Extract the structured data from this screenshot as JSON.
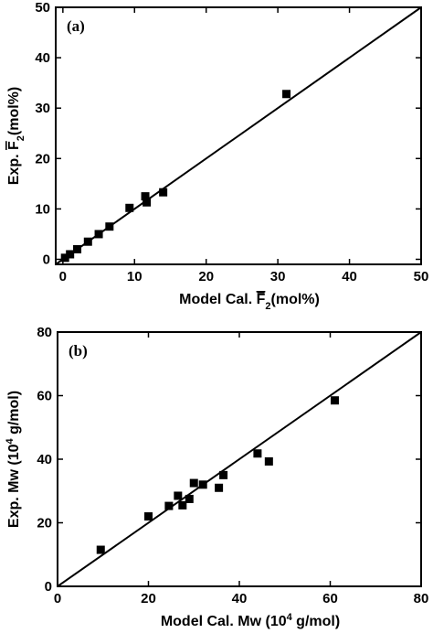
{
  "chart_data": [
    {
      "type": "scatter",
      "panel_label": "(a)",
      "xlabel": {
        "pre": "Model Cal. ",
        "sym": "F",
        "sub": "2",
        "post": "(mol%)"
      },
      "ylabel": {
        "pre": "Exp. ",
        "sym": "F",
        "sub": "2",
        "post": "(mol%)"
      },
      "xlim": [
        -1,
        50
      ],
      "ylim": [
        -1,
        50
      ],
      "xticks": [
        0,
        10,
        20,
        30,
        40,
        50
      ],
      "yticks": [
        0,
        10,
        20,
        30,
        40,
        50
      ],
      "grid": false,
      "reference_line": [
        [
          -1,
          -1
        ],
        [
          50,
          50
        ]
      ],
      "points": [
        [
          0.3,
          0.3
        ],
        [
          1.0,
          1.0
        ],
        [
          2.0,
          2.0
        ],
        [
          3.5,
          3.5
        ],
        [
          5.0,
          5.0
        ],
        [
          6.5,
          6.5
        ],
        [
          9.3,
          10.2
        ],
        [
          11.5,
          12.5
        ],
        [
          11.7,
          11.3
        ],
        [
          14.0,
          13.3
        ],
        [
          31.2,
          32.8
        ]
      ]
    },
    {
      "type": "scatter",
      "panel_label": "(b)",
      "xlabel": {
        "pre": "Model Cal. Mw (10",
        "sup": "4",
        "post": " g/mol)"
      },
      "ylabel": {
        "pre": "Exp. Mw (10",
        "sup": "4",
        "post": " g/mol)"
      },
      "xlim": [
        0,
        80
      ],
      "ylim": [
        0,
        80
      ],
      "xticks": [
        0,
        20,
        40,
        60,
        80
      ],
      "yticks": [
        0,
        20,
        40,
        60,
        80
      ],
      "grid": false,
      "reference_line": [
        [
          0,
          0
        ],
        [
          80,
          80
        ]
      ],
      "points": [
        [
          9.5,
          11.5
        ],
        [
          20,
          22
        ],
        [
          24.5,
          25.3
        ],
        [
          26.5,
          28.5
        ],
        [
          27.5,
          25.5
        ],
        [
          29,
          27.5
        ],
        [
          30,
          32.5
        ],
        [
          32,
          32
        ],
        [
          35.5,
          31
        ],
        [
          36.5,
          35
        ],
        [
          44,
          41.8
        ],
        [
          46.5,
          39.3
        ],
        [
          61,
          58.5
        ]
      ]
    }
  ]
}
